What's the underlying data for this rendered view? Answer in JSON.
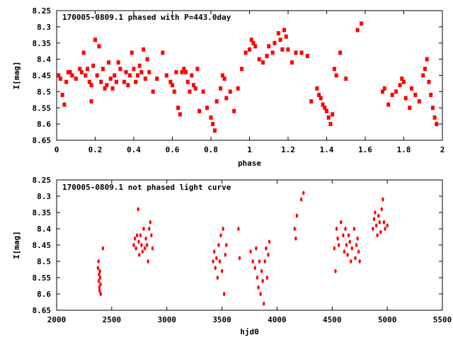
{
  "chart_data": [
    {
      "type": "scatter",
      "title": "170005-0809.1 phased with P=443.0day",
      "xlabel": "phase",
      "ylabel": "I[mag]",
      "xlim": [
        0,
        2
      ],
      "ylim": [
        8.65,
        8.25
      ],
      "y_inverted": true,
      "xticks": [
        "0",
        "0.2",
        "0.4",
        "0.6",
        "0.8",
        "1",
        "1.2",
        "1.4",
        "1.6",
        "1.8",
        "2"
      ],
      "yticks": [
        "8.25",
        "8.3",
        "8.35",
        "8.4",
        "8.45",
        "8.5",
        "8.55",
        "8.6",
        "8.65"
      ],
      "grid": false,
      "marker_color": "#ff0000",
      "series": [
        {
          "x": [
            0.01,
            0.02,
            0.03,
            0.04,
            0.05,
            0.06,
            0.07,
            0.08,
            0.1,
            0.12,
            0.13,
            0.14,
            0.15,
            0.16,
            0.17,
            0.18,
            0.18,
            0.19,
            0.2,
            0.21,
            0.22,
            0.23,
            0.24,
            0.25,
            0.26,
            0.27,
            0.28,
            0.29,
            0.3,
            0.31,
            0.32,
            0.33,
            0.35,
            0.36,
            0.37,
            0.38,
            0.39,
            0.4,
            0.41,
            0.42,
            0.43,
            0.44,
            0.45,
            0.46,
            0.47,
            0.48,
            0.5,
            0.52,
            0.55,
            0.57,
            0.59,
            0.6,
            0.61,
            0.62,
            0.63,
            0.64,
            0.65,
            0.66,
            0.67,
            0.68,
            0.69,
            0.7,
            0.71,
            0.72,
            0.73,
            0.74,
            0.76,
            0.78,
            0.8,
            0.81,
            0.82,
            0.83,
            0.85,
            0.86,
            0.87,
            0.88,
            0.9,
            0.92,
            0.94,
            0.96,
            0.98,
            1.0,
            1.01,
            1.02,
            1.03,
            1.05,
            1.07,
            1.09,
            1.1,
            1.12,
            1.13,
            1.15,
            1.16,
            1.17,
            1.18,
            1.19,
            1.2,
            1.22,
            1.24,
            1.27,
            1.3,
            1.32,
            1.35,
            1.36,
            1.37,
            1.38,
            1.39,
            1.4,
            1.41,
            1.42,
            1.43,
            1.44,
            1.45,
            1.47,
            1.5,
            1.56,
            1.58,
            1.69,
            1.7,
            1.72,
            1.74,
            1.76,
            1.78,
            1.79,
            1.8,
            1.81,
            1.83,
            1.84,
            1.86,
            1.88,
            1.9,
            1.91,
            1.92,
            1.93,
            1.94,
            1.95,
            1.96,
            1.97
          ],
          "y": [
            8.45,
            8.46,
            8.51,
            8.54,
            8.47,
            8.44,
            8.44,
            8.45,
            8.46,
            8.43,
            8.44,
            8.38,
            8.45,
            8.43,
            8.47,
            8.48,
            8.53,
            8.42,
            8.34,
            8.45,
            8.36,
            8.47,
            8.43,
            8.49,
            8.48,
            8.41,
            8.46,
            8.49,
            8.45,
            8.47,
            8.41,
            8.43,
            8.47,
            8.44,
            8.48,
            8.45,
            8.38,
            8.43,
            8.47,
            8.45,
            8.42,
            8.44,
            8.37,
            8.46,
            8.4,
            8.44,
            8.5,
            8.46,
            8.38,
            8.45,
            8.47,
            8.48,
            8.5,
            8.44,
            8.55,
            8.57,
            8.44,
            8.43,
            8.44,
            8.47,
            8.5,
            8.45,
            8.48,
            8.49,
            8.43,
            8.56,
            8.5,
            8.55,
            8.58,
            8.6,
            8.62,
            8.53,
            8.49,
            8.45,
            8.46,
            8.52,
            8.5,
            8.56,
            8.49,
            8.43,
            8.38,
            8.37,
            8.34,
            8.35,
            8.36,
            8.4,
            8.41,
            8.39,
            8.36,
            8.38,
            8.35,
            8.32,
            8.34,
            8.37,
            8.31,
            8.33,
            8.37,
            8.41,
            8.38,
            8.38,
            8.39,
            8.53,
            8.49,
            8.51,
            8.52,
            8.54,
            8.55,
            8.56,
            8.58,
            8.6,
            8.57,
            8.43,
            8.45,
            8.38,
            8.46,
            8.31,
            8.29,
            8.5,
            8.49,
            8.54,
            8.51,
            8.5,
            8.48,
            8.46,
            8.47,
            8.52,
            8.55,
            8.49,
            8.51,
            8.53,
            8.45,
            8.43,
            8.4,
            8.47,
            8.51,
            8.55,
            8.58,
            8.6
          ]
        }
      ]
    },
    {
      "type": "scatter",
      "title": "170005-0809.1 not phased light curve",
      "xlabel": "hjd0",
      "ylabel": "I[mag]",
      "xlim": [
        2000,
        5500
      ],
      "ylim": [
        8.65,
        8.25
      ],
      "y_inverted": true,
      "xticks": [
        "2000",
        "2500",
        "3000",
        "3500",
        "4000",
        "4500",
        "5000",
        "5500"
      ],
      "yticks": [
        "8.25",
        "8.3",
        "8.35",
        "8.4",
        "8.45",
        "8.5",
        "8.55",
        "8.6",
        "8.65"
      ],
      "grid": false,
      "marker_color": "#ff0000",
      "series": [
        {
          "x": [
            2375,
            2380,
            2382,
            2385,
            2388,
            2390,
            2392,
            2395,
            2398,
            2400,
            2420,
            2700,
            2710,
            2720,
            2730,
            2740,
            2745,
            2750,
            2760,
            2770,
            2780,
            2790,
            2800,
            2810,
            2820,
            2830,
            2840,
            2850,
            2860,
            2870,
            3420,
            3430,
            3440,
            3450,
            3460,
            3470,
            3480,
            3490,
            3500,
            3510,
            3520,
            3530,
            3540,
            3650,
            3660,
            3760,
            3780,
            3800,
            3810,
            3820,
            3830,
            3840,
            3850,
            3860,
            3870,
            3880,
            3890,
            3900,
            3910,
            3920,
            3930,
            4160,
            4170,
            4180,
            4220,
            4240,
            4520,
            4530,
            4540,
            4550,
            4560,
            4580,
            4600,
            4610,
            4620,
            4630,
            4640,
            4650,
            4660,
            4670,
            4680,
            4700,
            4710,
            4720,
            4730,
            4740,
            4750,
            4870,
            4880,
            4890,
            4900,
            4910,
            4920,
            4930,
            4940,
            4950,
            4960,
            4970,
            4980,
            5000
          ],
          "y": [
            8.52,
            8.5,
            8.56,
            8.54,
            8.58,
            8.59,
            8.53,
            8.55,
            8.57,
            8.6,
            8.46,
            8.45,
            8.43,
            8.46,
            8.42,
            8.34,
            8.44,
            8.48,
            8.42,
            8.45,
            8.47,
            8.4,
            8.46,
            8.43,
            8.45,
            8.5,
            8.4,
            8.38,
            8.42,
            8.46,
            8.5,
            8.47,
            8.52,
            8.49,
            8.55,
            8.45,
            8.5,
            8.42,
            8.53,
            8.4,
            8.6,
            8.48,
            8.45,
            8.4,
            8.49,
            8.47,
            8.5,
            8.52,
            8.46,
            8.55,
            8.58,
            8.5,
            8.6,
            8.53,
            8.56,
            8.63,
            8.5,
            8.46,
            8.55,
            8.48,
            8.44,
            8.4,
            8.43,
            8.36,
            8.31,
            8.29,
            8.46,
            8.53,
            8.4,
            8.43,
            8.45,
            8.38,
            8.42,
            8.47,
            8.4,
            8.45,
            8.48,
            8.42,
            8.44,
            8.5,
            8.46,
            8.4,
            8.49,
            8.45,
            8.43,
            8.47,
            8.5,
            8.4,
            8.37,
            8.35,
            8.39,
            8.42,
            8.36,
            8.38,
            8.41,
            8.34,
            8.31,
            8.38,
            8.4,
            8.39
          ]
        }
      ]
    }
  ]
}
